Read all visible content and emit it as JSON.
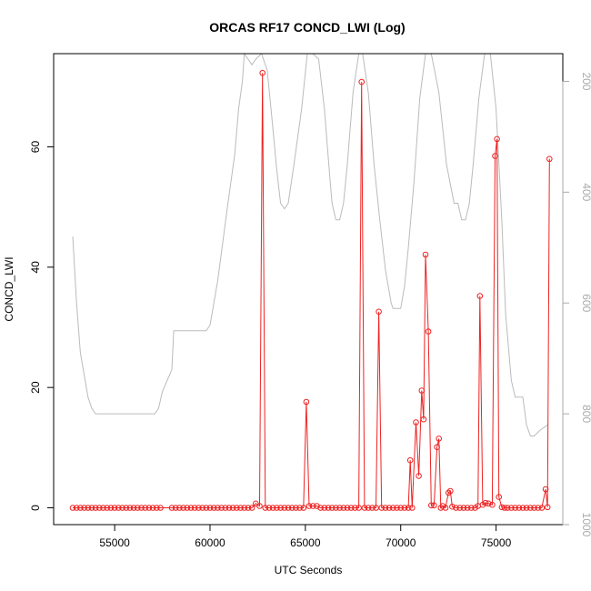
{
  "chart_data": {
    "type": "line",
    "title": "ORCAS RF17 CONCD_LWI (Log)",
    "xlabel": "UTC Seconds",
    "ylabel": "CONCD_LWI",
    "xlim": [
      51800,
      78500
    ],
    "ylim": [
      -2.8,
      75.5
    ],
    "y2lim": [
      1000,
      150
    ],
    "x_ticks": [
      55000,
      60000,
      65000,
      70000,
      75000
    ],
    "y_ticks": [
      0,
      20,
      40,
      60
    ],
    "y2_ticks": [
      200,
      400,
      600,
      800,
      1000
    ],
    "grid": false,
    "legend": "none",
    "colors": {
      "concd": "#ee2222",
      "pressure": "#bbbbbb",
      "axis": "#000000",
      "right_axis": "#aaaaaa"
    },
    "concd_series": {
      "x": [
        52800,
        53000,
        53200,
        53400,
        53600,
        53800,
        54000,
        54200,
        54400,
        54600,
        54800,
        55000,
        55200,
        55400,
        55600,
        55800,
        56000,
        56200,
        56400,
        56600,
        56800,
        57000,
        57200,
        57400,
        58000,
        58200,
        58400,
        58600,
        58800,
        59000,
        59200,
        59400,
        59600,
        59800,
        60000,
        60200,
        60400,
        60600,
        60800,
        61000,
        61200,
        61400,
        61600,
        61800,
        62000,
        62200,
        62400,
        62600,
        62750,
        62900,
        63100,
        63300,
        63500,
        63700,
        63900,
        64100,
        64300,
        64500,
        64700,
        64900,
        65050,
        65200,
        65400,
        65600,
        65800,
        66000,
        66200,
        66400,
        66600,
        66800,
        67000,
        67200,
        67400,
        67600,
        67800,
        67950,
        68100,
        68300,
        68500,
        68700,
        68850,
        69000,
        69200,
        69400,
        69600,
        69800,
        70000,
        70200,
        70400,
        70500,
        70600,
        70800,
        70950,
        71100,
        71200,
        71300,
        71450,
        71600,
        71750,
        71900,
        72000,
        72100,
        72200,
        72350,
        72500,
        72600,
        72700,
        72900,
        73100,
        73300,
        73500,
        73700,
        73900,
        74050,
        74150,
        74300,
        74450,
        74600,
        74800,
        74950,
        75050,
        75150,
        75300,
        75450,
        75600,
        75800,
        76000,
        76200,
        76400,
        76600,
        76800,
        77000,
        77200,
        77400,
        77600,
        77700,
        77800
      ],
      "y": [
        0,
        0,
        0,
        0,
        0,
        0,
        0,
        0,
        0,
        0,
        0,
        0,
        0,
        0,
        0,
        0,
        0,
        0,
        0,
        0,
        0,
        0,
        0,
        0,
        0,
        0,
        0,
        0,
        0,
        0,
        0,
        0,
        0,
        0,
        0,
        0,
        0,
        0,
        0,
        0,
        0,
        0,
        0,
        0,
        0,
        0,
        0.7,
        0.3,
        72.3,
        0,
        0,
        0,
        0,
        0,
        0,
        0,
        0,
        0,
        0,
        0,
        17.6,
        0.3,
        0.3,
        0.3,
        0,
        0,
        0,
        0,
        0,
        0,
        0,
        0,
        0,
        0,
        0,
        70.8,
        0,
        0,
        0,
        0,
        32.6,
        0,
        0,
        0,
        0,
        0,
        0,
        0,
        0,
        7.9,
        0,
        14.2,
        5.3,
        19.5,
        14.7,
        42.1,
        29.3,
        0.4,
        0.4,
        10.1,
        11.5,
        0,
        0.3,
        0,
        2.5,
        2.8,
        0.2,
        0,
        0,
        0,
        0,
        0,
        0,
        0.3,
        35.2,
        0.5,
        0.8,
        0.7,
        0.5,
        58.5,
        61.3,
        1.8,
        0.1,
        0,
        0,
        0,
        0,
        0,
        0,
        0,
        0,
        0,
        0,
        0,
        3.1,
        0.1,
        58
      ]
    },
    "pressure_series": {
      "x": [
        52800,
        52900,
        53000,
        53200,
        53400,
        53600,
        53800,
        54000,
        54200,
        56000,
        57100,
        57300,
        57500,
        58000,
        58100,
        58400,
        59000,
        59400,
        59800,
        60000,
        60400,
        60900,
        61300,
        61500,
        61700,
        61800,
        62000,
        62200,
        62400,
        62700,
        62800,
        63000,
        63200,
        63500,
        63700,
        63900,
        64100,
        64400,
        64800,
        65100,
        65400,
        65700,
        66000,
        66300,
        66400,
        66600,
        66800,
        67000,
        67200,
        67500,
        67800,
        68000,
        68300,
        68600,
        68900,
        69200,
        69500,
        69600,
        69800,
        70000,
        70200,
        70400,
        70700,
        71000,
        71300,
        71600,
        72000,
        72400,
        72800,
        73000,
        73200,
        73400,
        73600,
        73800,
        74100,
        74400,
        74700,
        75000,
        75300,
        75500,
        75700,
        75800,
        76000,
        76200,
        76400,
        76600,
        76800,
        77000,
        77300,
        77700
      ],
      "y": [
        480,
        540,
        600,
        690,
        730,
        770,
        790,
        800,
        800,
        800,
        800,
        790,
        760,
        720,
        650,
        650,
        650,
        650,
        650,
        640,
        560,
        430,
        330,
        250,
        200,
        150,
        160,
        170,
        160,
        150,
        160,
        180,
        250,
        360,
        420,
        430,
        420,
        350,
        250,
        150,
        150,
        160,
        250,
        380,
        420,
        450,
        450,
        420,
        350,
        220,
        150,
        150,
        220,
        350,
        450,
        540,
        600,
        610,
        610,
        610,
        570,
        500,
        380,
        230,
        150,
        150,
        220,
        350,
        420,
        420,
        450,
        450,
        420,
        350,
        230,
        150,
        150,
        250,
        450,
        620,
        700,
        740,
        770,
        770,
        770,
        820,
        840,
        840,
        830,
        820
      ]
    }
  }
}
